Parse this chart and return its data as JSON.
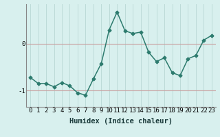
{
  "xlabel": "Humidex (Indice chaleur)",
  "x_values": [
    0,
    1,
    2,
    3,
    4,
    5,
    6,
    7,
    8,
    9,
    10,
    11,
    12,
    13,
    14,
    15,
    16,
    17,
    18,
    19,
    20,
    21,
    22,
    23
  ],
  "y_values": [
    -0.72,
    -0.85,
    -0.85,
    -0.92,
    -0.83,
    -0.9,
    -1.05,
    -1.1,
    -0.75,
    -0.42,
    0.3,
    0.68,
    0.28,
    0.22,
    0.25,
    -0.18,
    -0.38,
    -0.3,
    -0.62,
    -0.68,
    -0.32,
    -0.25,
    0.08,
    0.18
  ],
  "line_color": "#2d7b6e",
  "marker": "D",
  "marker_size": 2.5,
  "linewidth": 1.1,
  "background_color": "#d8f0ee",
  "vgrid_color": "#b8d8d4",
  "hgrid_color": "#c8a0a0",
  "ytick_labels": [
    "0",
    "-1"
  ],
  "ytick_vals": [
    0,
    -1
  ],
  "ylim": [
    -1.35,
    0.85
  ],
  "xlim": [
    -0.5,
    23.5
  ],
  "xlabel_fontsize": 7.5,
  "tick_fontsize": 6.5
}
